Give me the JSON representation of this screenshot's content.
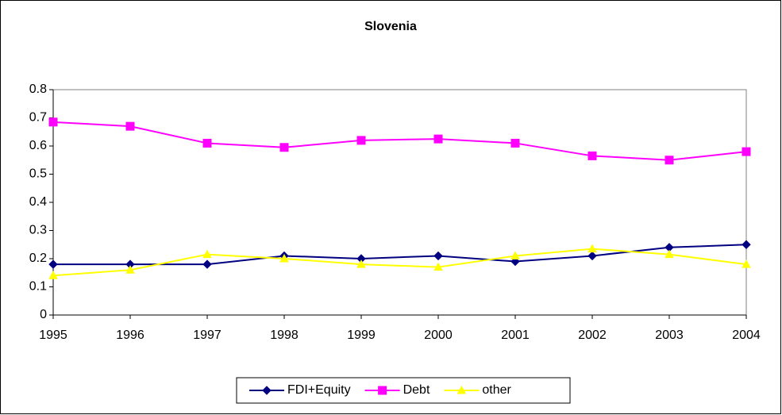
{
  "chart_data": {
    "type": "line",
    "title": "Slovenia",
    "categories": [
      "1995",
      "1996",
      "1997",
      "1998",
      "1999",
      "2000",
      "2001",
      "2002",
      "2003",
      "2004"
    ],
    "series": [
      {
        "name": "FDI+Equity",
        "color": "#000080",
        "marker": "diamond",
        "values": [
          0.18,
          0.18,
          0.18,
          0.21,
          0.2,
          0.21,
          0.19,
          0.21,
          0.24,
          0.25
        ]
      },
      {
        "name": "Debt",
        "color": "#ff00ff",
        "marker": "square",
        "values": [
          0.685,
          0.67,
          0.61,
          0.595,
          0.62,
          0.625,
          0.61,
          0.565,
          0.55,
          0.58
        ]
      },
      {
        "name": "other",
        "color": "#ffff00",
        "marker": "triangle",
        "values": [
          0.14,
          0.16,
          0.215,
          0.2,
          0.18,
          0.17,
          0.21,
          0.235,
          0.215,
          0.18
        ]
      }
    ],
    "ylim": [
      0,
      0.8
    ],
    "yticks": [
      0,
      0.1,
      0.2,
      0.3,
      0.4,
      0.5,
      0.6,
      0.7,
      0.8
    ],
    "grid": false,
    "legend": "bottom"
  }
}
